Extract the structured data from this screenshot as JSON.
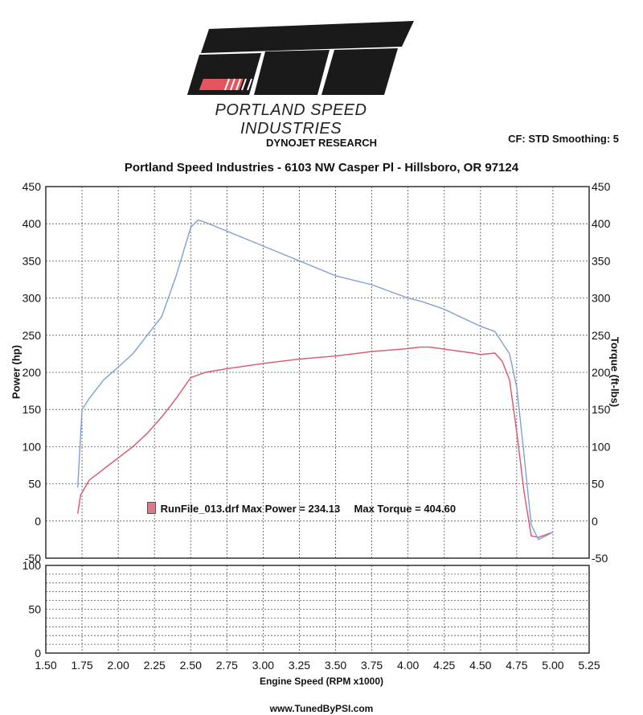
{
  "header": {
    "logo_text": "PSI",
    "company_tagline": "PORTLAND SPEED INDUSTRIES",
    "dyno_title": "DYNOJET RESEARCH",
    "settings": "CF: STD  Smoothing: 5",
    "address_line": "Portland Speed Industries - 6103 NW Casper Pl - Hillsboro, OR 97124"
  },
  "footer": {
    "url": "www.TunedByPSI.com"
  },
  "legend": {
    "entry": "RunFile_013.drf Max Power = 234.13",
    "max_torque": "Max Torque = 404.60",
    "swatch_color": "#d97a8a"
  },
  "chart_data": [
    {
      "type": "line",
      "xlabel": "Engine Speed (RPM x1000)",
      "ylabel": "Power (hp)",
      "ylabel_right": "Torque (ft-lbs)",
      "xlim": [
        1.5,
        5.25
      ],
      "ylim": [
        -50,
        450
      ],
      "x_ticks": [
        "1.50",
        "1.75",
        "2.00",
        "2.25",
        "2.50",
        "2.75",
        "3.00",
        "3.25",
        "3.50",
        "3.75",
        "4.00",
        "4.25",
        "4.50",
        "4.75",
        "5.00",
        "5.25"
      ],
      "y_ticks": [
        "-50",
        "0",
        "50",
        "100",
        "150",
        "200",
        "250",
        "300",
        "350",
        "400",
        "450"
      ],
      "grid": true,
      "series": [
        {
          "name": "Power",
          "color": "#d9556b",
          "points": [
            [
              1.72,
              10
            ],
            [
              1.74,
              35
            ],
            [
              1.8,
              55
            ],
            [
              1.9,
              70
            ],
            [
              2.0,
              85
            ],
            [
              2.1,
              100
            ],
            [
              2.2,
              118
            ],
            [
              2.3,
              140
            ],
            [
              2.4,
              165
            ],
            [
              2.5,
              193
            ],
            [
              2.6,
              200
            ],
            [
              2.75,
              205
            ],
            [
              3.0,
              212
            ],
            [
              3.25,
              218
            ],
            [
              3.5,
              222
            ],
            [
              3.75,
              228
            ],
            [
              4.0,
              232
            ],
            [
              4.08,
              234
            ],
            [
              4.15,
              234
            ],
            [
              4.3,
              230
            ],
            [
              4.45,
              226
            ],
            [
              4.5,
              224
            ],
            [
              4.6,
              226
            ],
            [
              4.65,
              215
            ],
            [
              4.7,
              190
            ],
            [
              4.75,
              120
            ],
            [
              4.8,
              40
            ],
            [
              4.85,
              -20
            ],
            [
              4.9,
              -22
            ],
            [
              5.0,
              -15
            ]
          ]
        },
        {
          "name": "Torque",
          "color": "#7f9fd3",
          "points": [
            [
              1.72,
              45
            ],
            [
              1.75,
              150
            ],
            [
              1.8,
              165
            ],
            [
              1.9,
              190
            ],
            [
              2.0,
              207
            ],
            [
              2.1,
              225
            ],
            [
              2.2,
              250
            ],
            [
              2.3,
              275
            ],
            [
              2.4,
              330
            ],
            [
              2.5,
              395
            ],
            [
              2.55,
              405
            ],
            [
              2.6,
              402
            ],
            [
              2.75,
              390
            ],
            [
              3.0,
              370
            ],
            [
              3.25,
              350
            ],
            [
              3.5,
              330
            ],
            [
              3.75,
              318
            ],
            [
              4.0,
              300
            ],
            [
              4.1,
              295
            ],
            [
              4.25,
              285
            ],
            [
              4.5,
              262
            ],
            [
              4.6,
              255
            ],
            [
              4.7,
              225
            ],
            [
              4.75,
              180
            ],
            [
              4.8,
              90
            ],
            [
              4.85,
              -5
            ],
            [
              4.9,
              -25
            ],
            [
              5.0,
              -15
            ]
          ]
        }
      ]
    },
    {
      "type": "line",
      "xlabel": "Engine Speed (RPM x1000)",
      "xlim": [
        1.5,
        5.25
      ],
      "ylim": [
        0,
        100
      ],
      "y_ticks": [
        "0",
        "50",
        "100"
      ],
      "grid": true,
      "series": []
    }
  ]
}
